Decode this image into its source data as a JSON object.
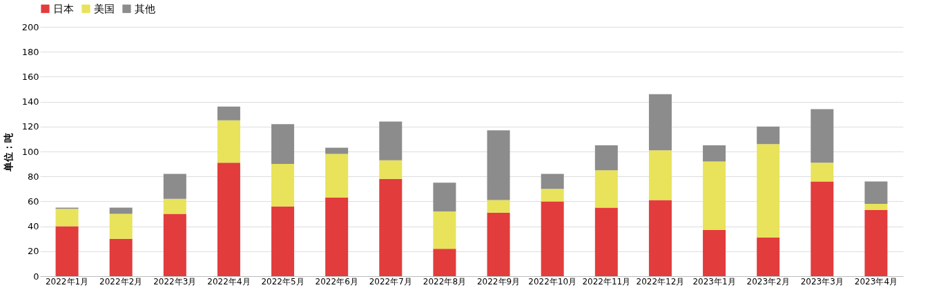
{
  "chart_data": {
    "type": "bar",
    "stacked": true,
    "ylabel": "单位：吨",
    "legend": "top",
    "grid": "y",
    "categories": [
      "2022年1月",
      "2022年2月",
      "2022年3月",
      "2022年4月",
      "2022年5月",
      "2022年6月",
      "2022年7月",
      "2022年8月",
      "2022年9月",
      "2022年10月",
      "2022年11月",
      "2022年12月",
      "2023年1月",
      "2023年2月",
      "2023年3月",
      "2023年4月"
    ],
    "ylim": [
      0,
      200
    ],
    "yticks": [
      0,
      20,
      40,
      60,
      80,
      100,
      120,
      140,
      160,
      180,
      200
    ],
    "series": [
      {
        "name": "日本",
        "color": "#e23c3c",
        "values": [
          40,
          30,
          50,
          91,
          56,
          63,
          78,
          22,
          51,
          60,
          55,
          61,
          37,
          31,
          76,
          53
        ]
      },
      {
        "name": "美国",
        "color": "#e8e35a",
        "values": [
          14,
          20,
          12,
          34,
          34,
          35,
          15,
          30,
          10,
          10,
          30,
          40,
          55,
          75,
          15,
          5
        ]
      },
      {
        "name": "其他",
        "color": "#8c8c8c",
        "values": [
          1,
          5,
          20,
          11,
          32,
          5,
          31,
          23,
          56,
          12,
          20,
          45,
          13,
          14,
          43,
          18
        ]
      }
    ]
  }
}
